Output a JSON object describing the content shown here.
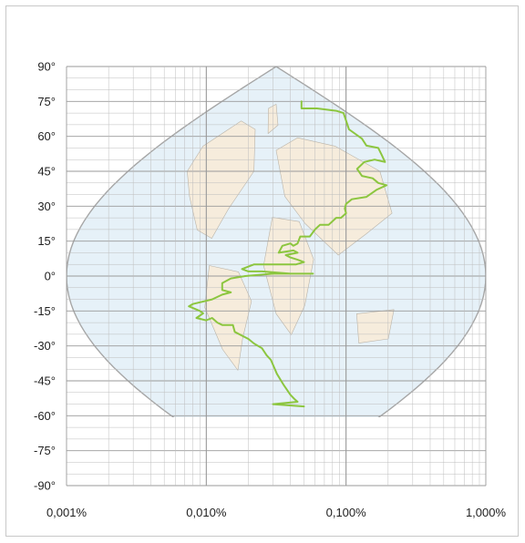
{
  "chart_data": {
    "type": "line",
    "title": "",
    "xlabel": "",
    "ylabel": "",
    "x_scale": "log",
    "xlim": [
      0.001,
      1.0
    ],
    "ylim": [
      -90,
      90
    ],
    "grid": true,
    "legend": "none",
    "background": "world-map-sinusoidal-projection",
    "x_tick_labels": [
      "0,001%",
      "0,010%",
      "0,100%",
      "1,000%"
    ],
    "x_tick_values": [
      0.001,
      0.01,
      0.1,
      1.0
    ],
    "y_tick_labels": [
      "90°",
      "75°",
      "60°",
      "45°",
      "30°",
      "15°",
      "0°",
      "-15°",
      "-30°",
      "-45°",
      "-60°",
      "-75°",
      "-90°"
    ],
    "y_tick_values": [
      90,
      75,
      60,
      45,
      30,
      15,
      0,
      -15,
      -30,
      -45,
      -60,
      -75,
      -90
    ],
    "colors": {
      "series": "#8cc63f",
      "grid": "#bdbdbd",
      "frame": "#c8c8c8",
      "ocean": "#e6f1f8",
      "land": "#f6ecdc",
      "outline": "#a6a6a6"
    },
    "series": [
      {
        "color": "#8cc63f",
        "points": [
          [
            0.048,
            75
          ],
          [
            0.048,
            72
          ],
          [
            0.062,
            72
          ],
          [
            0.085,
            71
          ],
          [
            0.096,
            70
          ],
          [
            0.105,
            63
          ],
          [
            0.13,
            59
          ],
          [
            0.14,
            56
          ],
          [
            0.17,
            55
          ],
          [
            0.18,
            52
          ],
          [
            0.19,
            49
          ],
          [
            0.16,
            50
          ],
          [
            0.135,
            49
          ],
          [
            0.12,
            46
          ],
          [
            0.13,
            43
          ],
          [
            0.155,
            42
          ],
          [
            0.17,
            40
          ],
          [
            0.195,
            39
          ],
          [
            0.165,
            37
          ],
          [
            0.14,
            34
          ],
          [
            0.11,
            33
          ],
          [
            0.1,
            31
          ],
          [
            0.098,
            29
          ],
          [
            0.1,
            27
          ],
          [
            0.092,
            25
          ],
          [
            0.085,
            25
          ],
          [
            0.075,
            22
          ],
          [
            0.065,
            22
          ],
          [
            0.06,
            20
          ],
          [
            0.055,
            17
          ],
          [
            0.047,
            17
          ],
          [
            0.045,
            14
          ],
          [
            0.042,
            13
          ],
          [
            0.04,
            14
          ],
          [
            0.035,
            13
          ],
          [
            0.033,
            10
          ],
          [
            0.042,
            11
          ],
          [
            0.045,
            10
          ],
          [
            0.037,
            9
          ],
          [
            0.04,
            8
          ],
          [
            0.045,
            7
          ],
          [
            0.05,
            6
          ],
          [
            0.044,
            5
          ],
          [
            0.03,
            5
          ],
          [
            0.022,
            5
          ],
          [
            0.018,
            3
          ],
          [
            0.02,
            2
          ],
          [
            0.025,
            2
          ],
          [
            0.04,
            1
          ],
          [
            0.058,
            1
          ],
          [
            0.03,
            1
          ],
          [
            0.019,
            0
          ],
          [
            0.015,
            -1
          ],
          [
            0.013,
            -3
          ],
          [
            0.013,
            -6
          ],
          [
            0.015,
            -7
          ],
          [
            0.013,
            -8
          ],
          [
            0.011,
            -10
          ],
          [
            0.008,
            -12
          ],
          [
            0.0075,
            -13
          ],
          [
            0.009,
            -15
          ],
          [
            0.0095,
            -16
          ],
          [
            0.0085,
            -18
          ],
          [
            0.01,
            -19
          ],
          [
            0.011,
            -18
          ],
          [
            0.012,
            -20
          ],
          [
            0.013,
            -21
          ],
          [
            0.0155,
            -21
          ],
          [
            0.016,
            -24
          ],
          [
            0.02,
            -27
          ],
          [
            0.022,
            -29
          ],
          [
            0.025,
            -31
          ],
          [
            0.027,
            -34
          ],
          [
            0.029,
            -36
          ],
          [
            0.032,
            -42
          ],
          [
            0.036,
            -47
          ],
          [
            0.04,
            -51
          ],
          [
            0.043,
            -53
          ],
          [
            0.045,
            -54
          ],
          [
            0.03,
            -55
          ],
          [
            0.05,
            -56
          ]
        ]
      }
    ]
  }
}
